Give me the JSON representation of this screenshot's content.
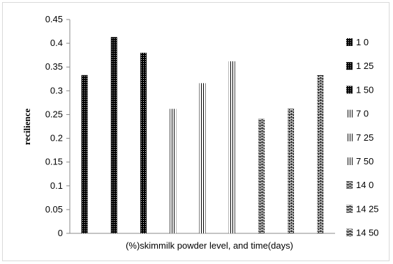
{
  "chart_data": {
    "type": "bar",
    "title": "",
    "xlabel": "(%)skimmilk powder level, and time(days)",
    "ylabel": "recilience",
    "ylim": [
      0,
      0.45
    ],
    "yticks": [
      "0",
      "0.05",
      "0.1",
      "0.15",
      "0.2",
      "0.25",
      "0.3",
      "0.35",
      "0.4",
      "0.45"
    ],
    "grid": false,
    "legend_position": "right",
    "series": [
      {
        "name": "1 0",
        "value": 0.333,
        "pattern": "dots"
      },
      {
        "name": "1 25",
        "value": 0.413,
        "pattern": "dots"
      },
      {
        "name": "1 50",
        "value": 0.38,
        "pattern": "dots"
      },
      {
        "name": "7 0",
        "value": 0.262,
        "pattern": "vlines"
      },
      {
        "name": "7 25",
        "value": 0.316,
        "pattern": "vlines"
      },
      {
        "name": "7 50",
        "value": 0.362,
        "pattern": "vlines"
      },
      {
        "name": "14 0",
        "value": 0.241,
        "pattern": "bricks"
      },
      {
        "name": "14 25",
        "value": 0.262,
        "pattern": "bricks"
      },
      {
        "name": "14 50",
        "value": 0.333,
        "pattern": "bricks"
      }
    ]
  }
}
